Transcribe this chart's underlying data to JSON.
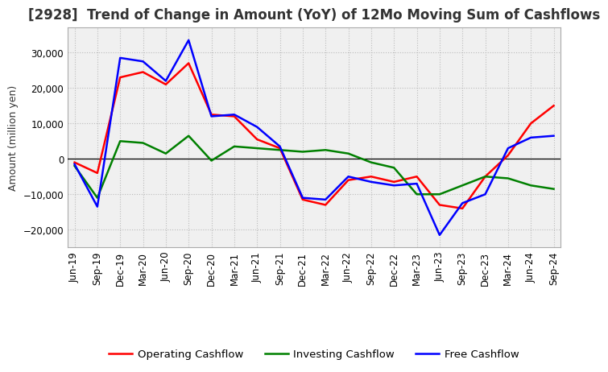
{
  "title": "[2928]  Trend of Change in Amount (YoY) of 12Mo Moving Sum of Cashflows",
  "xlabel": "",
  "ylabel": "Amount (million yen)",
  "x_labels": [
    "Jun-19",
    "Sep-19",
    "Dec-19",
    "Mar-20",
    "Jun-20",
    "Sep-20",
    "Dec-20",
    "Mar-21",
    "Jun-21",
    "Sep-21",
    "Dec-21",
    "Mar-22",
    "Jun-22",
    "Sep-22",
    "Dec-22",
    "Mar-23",
    "Jun-23",
    "Sep-23",
    "Dec-23",
    "Mar-24",
    "Jun-24",
    "Sep-24"
  ],
  "operating": [
    -1000,
    -4000,
    23000,
    24500,
    21000,
    27000,
    12500,
    12000,
    5500,
    3000,
    -11500,
    -13000,
    -6000,
    -5000,
    -6500,
    -5000,
    -13000,
    -14000,
    -5000,
    1000,
    10000,
    15000
  ],
  "investing": [
    -2000,
    -11000,
    5000,
    4500,
    1500,
    6500,
    -500,
    3500,
    3000,
    2500,
    2000,
    2500,
    1500,
    -1000,
    -2500,
    -10000,
    -10000,
    -7500,
    -5000,
    -5500,
    -7500,
    -8500
  ],
  "free": [
    -1500,
    -13500,
    28500,
    27500,
    22000,
    33500,
    12000,
    12500,
    9000,
    3500,
    -11000,
    -11500,
    -5000,
    -6500,
    -7500,
    -7000,
    -21500,
    -12500,
    -10000,
    3000,
    6000,
    6500
  ],
  "operating_color": "#ff0000",
  "investing_color": "#008000",
  "free_color": "#0000ff",
  "ylim": [
    -25000,
    37000
  ],
  "yticks": [
    -20000,
    -10000,
    0,
    10000,
    20000,
    30000
  ],
  "background_color": "#ffffff",
  "plot_bg_color": "#f0f0f0",
  "grid_color": "#bbbbbb",
  "title_color": "#333333",
  "title_fontsize": 12,
  "axis_fontsize": 9,
  "tick_fontsize": 8.5,
  "legend_fontsize": 9.5
}
